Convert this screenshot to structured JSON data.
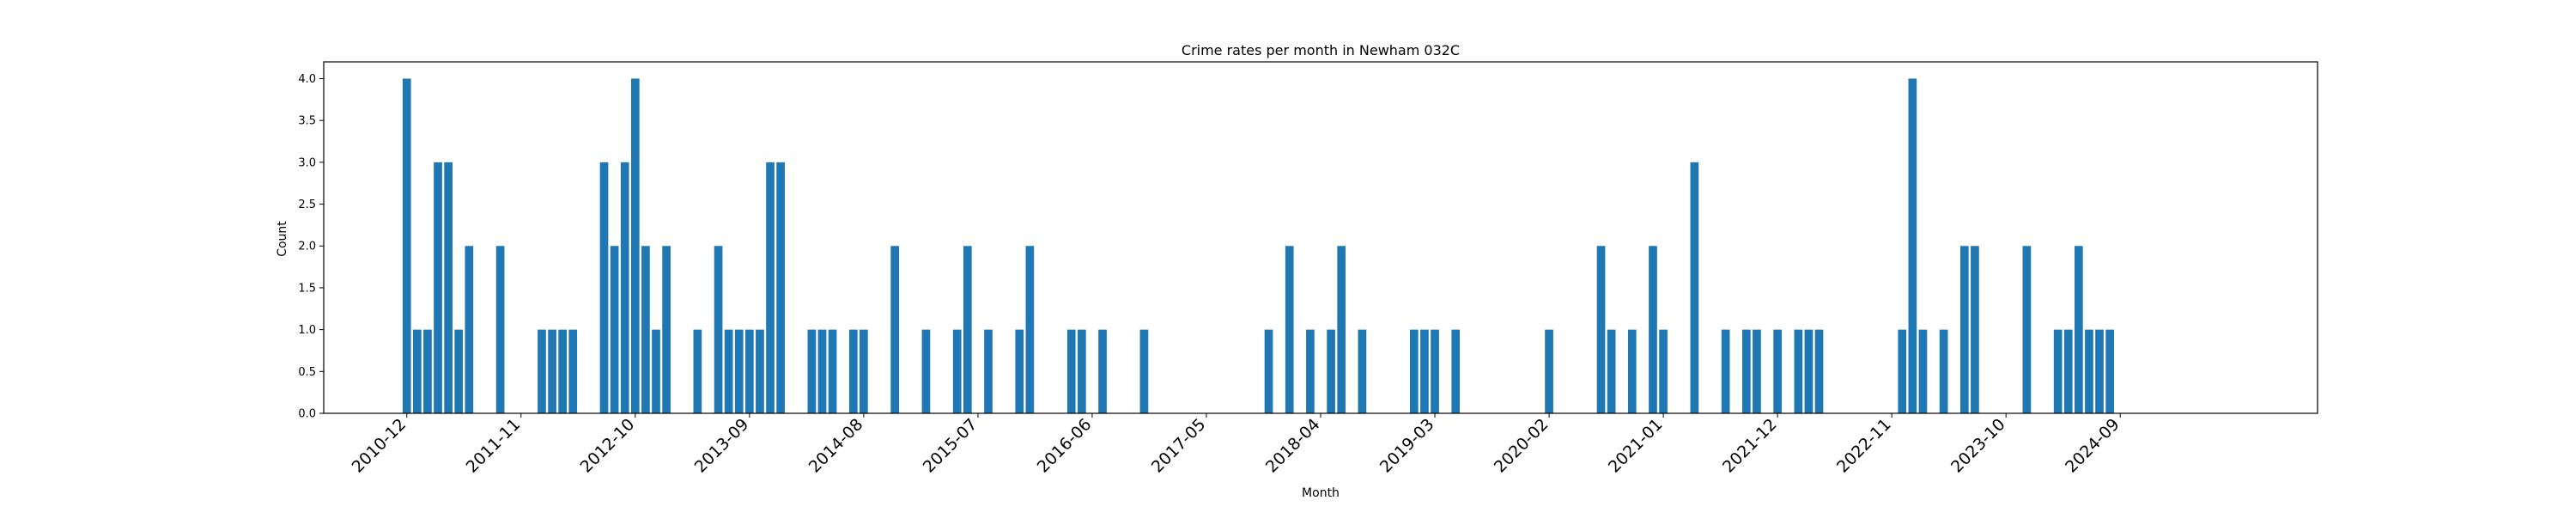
{
  "chart_data": {
    "type": "bar",
    "title": "Crime rates per month in Newham 032C",
    "xlabel": "Month",
    "ylabel": "Count",
    "ylim": [
      0,
      4.2
    ],
    "xlim": [
      "2010-04",
      "2026-04"
    ],
    "grid": false,
    "legend": "none",
    "bar_color": "#1f77b4",
    "bar_width_months": 0.8,
    "y_ticks": [
      "0.0",
      "0.5",
      "1.0",
      "1.5",
      "2.0",
      "2.5",
      "3.0",
      "3.5",
      "4.0"
    ],
    "x_ticks": [
      "2010-12",
      "2011-11",
      "2012-10",
      "2013-09",
      "2014-08",
      "2015-07",
      "2016-06",
      "2017-05",
      "2018-04",
      "2019-03",
      "2020-02",
      "2021-01",
      "2021-12",
      "2022-11",
      "2023-10",
      "2024-09"
    ],
    "x": [
      "2010-12",
      "2011-01",
      "2011-02",
      "2011-03",
      "2011-04",
      "2011-05",
      "2011-06",
      "2011-09",
      "2012-01",
      "2012-02",
      "2012-03",
      "2012-04",
      "2012-07",
      "2012-08",
      "2012-09",
      "2012-10",
      "2012-11",
      "2012-12",
      "2013-01",
      "2013-04",
      "2013-06",
      "2013-07",
      "2013-08",
      "2013-09",
      "2013-10",
      "2013-11",
      "2013-12",
      "2014-03",
      "2014-04",
      "2014-05",
      "2014-07",
      "2014-08",
      "2014-11",
      "2015-02",
      "2015-05",
      "2015-06",
      "2015-08",
      "2015-11",
      "2015-12",
      "2016-04",
      "2016-05",
      "2016-07",
      "2016-11",
      "2017-11",
      "2018-01",
      "2018-03",
      "2018-05",
      "2018-06",
      "2018-08",
      "2019-01",
      "2019-02",
      "2019-03",
      "2019-05",
      "2020-02",
      "2020-07",
      "2020-08",
      "2020-10",
      "2020-12",
      "2021-01",
      "2021-04",
      "2021-07",
      "2021-09",
      "2021-10",
      "2021-12",
      "2022-02",
      "2022-03",
      "2022-04",
      "2022-12",
      "2023-01",
      "2023-02",
      "2023-04",
      "2023-06",
      "2023-07",
      "2023-12",
      "2024-03",
      "2024-04",
      "2024-05",
      "2024-06",
      "2024-07",
      "2024-08"
    ],
    "values": [
      4,
      1,
      1,
      3,
      3,
      1,
      2,
      2,
      1,
      1,
      1,
      1,
      3,
      2,
      3,
      4,
      2,
      1,
      2,
      1,
      2,
      1,
      1,
      1,
      1,
      3,
      3,
      1,
      1,
      1,
      1,
      1,
      2,
      1,
      1,
      2,
      1,
      1,
      2,
      1,
      1,
      1,
      1,
      1,
      2,
      1,
      1,
      2,
      1,
      1,
      1,
      1,
      1,
      1,
      2,
      1,
      1,
      2,
      1,
      3,
      1,
      1,
      1,
      1,
      1,
      1,
      1,
      1,
      4,
      1,
      1,
      2,
      2,
      2,
      1,
      1,
      2,
      1,
      1,
      1
    ]
  }
}
